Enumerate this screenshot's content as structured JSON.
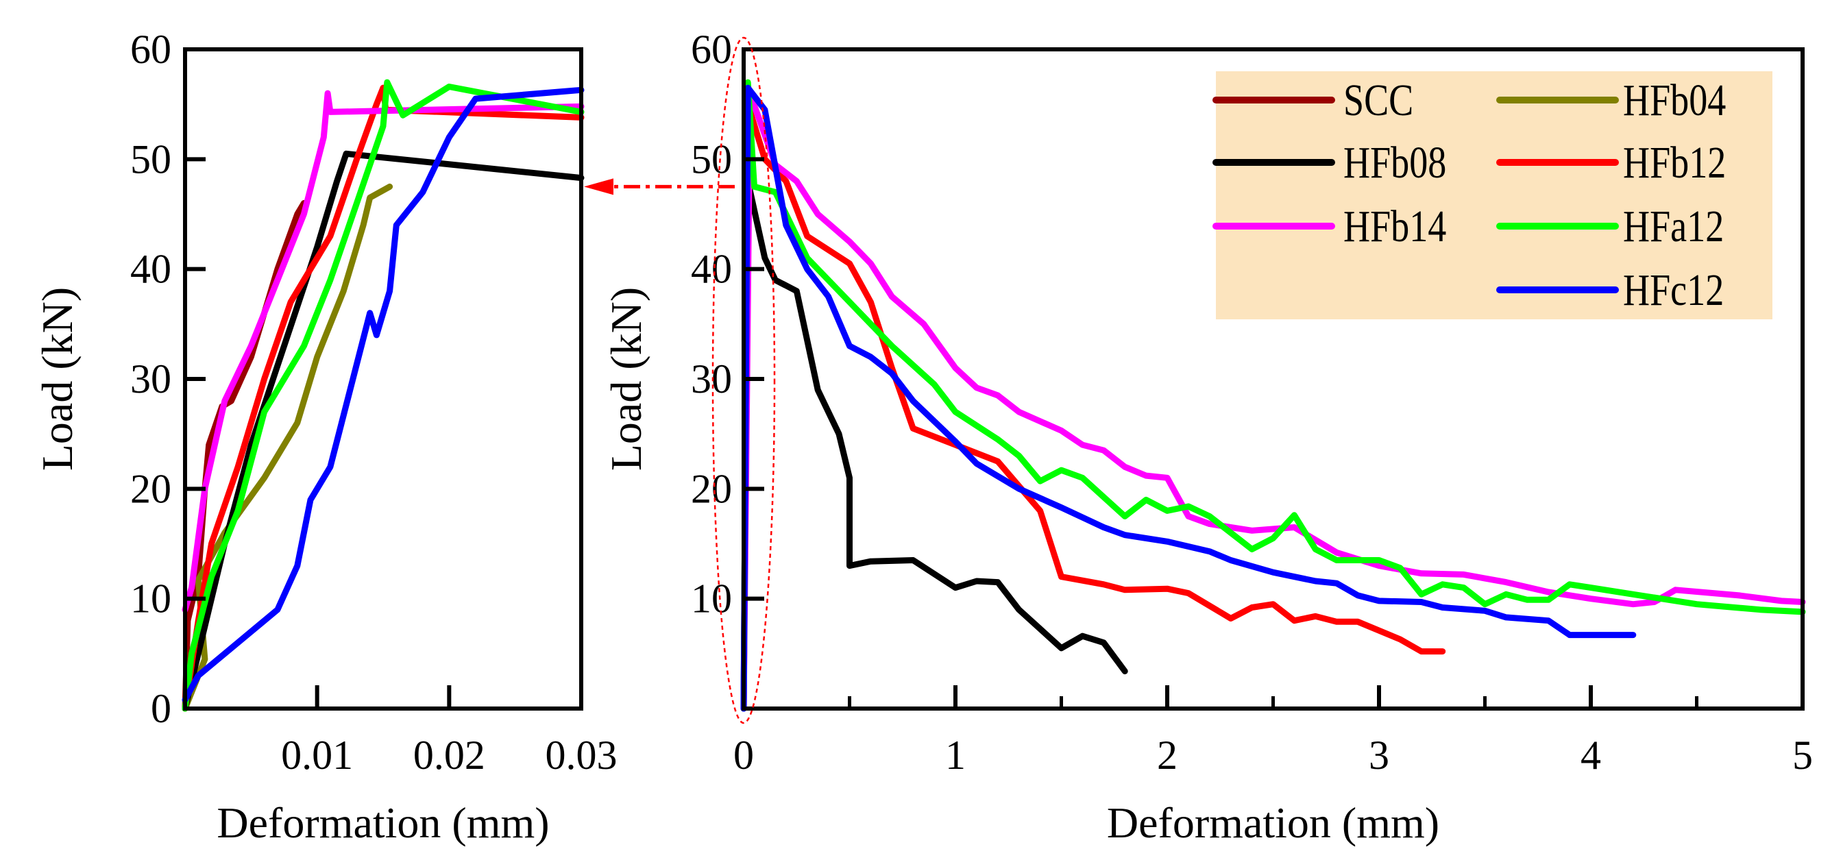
{
  "chart_data": [
    {
      "type": "line",
      "panel": "zoomed-initial",
      "xlabel": "Deformation (mm)",
      "ylabel": "Load (kN)",
      "xlim": [
        0,
        0.03
      ],
      "ylim": [
        0,
        60
      ],
      "xticks": [
        "0.01",
        "0.02",
        "0.03"
      ],
      "xtick_values": [
        0.01,
        0.02,
        0.03
      ],
      "yticks": [
        "0",
        "10",
        "20",
        "30",
        "40",
        "50",
        "60"
      ],
      "ytick_values": [
        0,
        10,
        20,
        30,
        40,
        50,
        60
      ],
      "series": [
        {
          "name": "SCC",
          "color": "#990000",
          "points": [
            [
              0,
              0
            ],
            [
              0.0002,
              8
            ],
            [
              0.001,
              12
            ],
            [
              0.0015,
              20
            ],
            [
              0.0018,
              24
            ],
            [
              0.0028,
              27.5
            ],
            [
              0.0035,
              28
            ],
            [
              0.005,
              32
            ],
            [
              0.007,
              40
            ],
            [
              0.0085,
              45
            ],
            [
              0.009,
              46
            ]
          ]
        },
        {
          "name": "HFb04",
          "color": "#808000",
          "points": [
            [
              0,
              0
            ],
            [
              0.0015,
              4.5
            ],
            [
              0.001,
              11.7
            ],
            [
              0.003,
              16
            ],
            [
              0.006,
              21
            ],
            [
              0.0085,
              26
            ],
            [
              0.01,
              32
            ],
            [
              0.012,
              38
            ],
            [
              0.0135,
              44
            ],
            [
              0.014,
              46.5
            ],
            [
              0.0155,
              47.5
            ]
          ]
        },
        {
          "name": "HFb08",
          "color": "#000000",
          "points": [
            [
              0,
              0
            ],
            [
              0.001,
              5
            ],
            [
              0.003,
              15
            ],
            [
              0.005,
              24
            ],
            [
              0.0075,
              33
            ],
            [
              0.01,
              42
            ],
            [
              0.0115,
              48
            ],
            [
              0.0122,
              50.5
            ],
            [
              0.03,
              48.3
            ]
          ]
        },
        {
          "name": "HFb12",
          "color": "#FF0000",
          "points": [
            [
              0,
              0
            ],
            [
              0.001,
              8
            ],
            [
              0.002,
              15
            ],
            [
              0.004,
              22
            ],
            [
              0.006,
              30
            ],
            [
              0.008,
              37
            ],
            [
              0.011,
              43
            ],
            [
              0.013,
              50
            ],
            [
              0.0145,
              55
            ],
            [
              0.015,
              56.5
            ],
            [
              0.0152,
              54.5
            ],
            [
              0.03,
              53.8
            ]
          ]
        },
        {
          "name": "HFb14",
          "color": "#FF00FF",
          "points": [
            [
              0,
              9
            ],
            [
              0.0005,
              11
            ],
            [
              0.0015,
              20
            ],
            [
              0.003,
              28
            ],
            [
              0.005,
              33
            ],
            [
              0.007,
              39
            ],
            [
              0.009,
              45
            ],
            [
              0.0105,
              52
            ],
            [
              0.0108,
              56
            ],
            [
              0.011,
              54.3
            ],
            [
              0.03,
              54.8
            ]
          ]
        },
        {
          "name": "HFa12",
          "color": "#00FF00",
          "points": [
            [
              0,
              0
            ],
            [
              0.0005,
              5
            ],
            [
              0.002,
              12
            ],
            [
              0.004,
              18
            ],
            [
              0.006,
              27
            ],
            [
              0.009,
              33
            ],
            [
              0.011,
              39
            ],
            [
              0.013,
              46
            ],
            [
              0.015,
              53
            ],
            [
              0.0153,
              57
            ],
            [
              0.0165,
              54
            ],
            [
              0.02,
              56.6
            ],
            [
              0.03,
              54.3
            ]
          ]
        },
        {
          "name": "HFc12",
          "color": "#0000FF",
          "points": [
            [
              0,
              0.8
            ],
            [
              0.001,
              3
            ],
            [
              0.004,
              6
            ],
            [
              0.007,
              9
            ],
            [
              0.0085,
              13
            ],
            [
              0.0095,
              19
            ],
            [
              0.011,
              22
            ],
            [
              0.0125,
              29
            ],
            [
              0.014,
              36
            ],
            [
              0.0145,
              34
            ],
            [
              0.0155,
              38
            ],
            [
              0.016,
              44
            ],
            [
              0.018,
              47
            ],
            [
              0.02,
              52
            ],
            [
              0.022,
              55.5
            ],
            [
              0.03,
              56.3
            ]
          ]
        }
      ]
    },
    {
      "type": "line",
      "panel": "full",
      "xlabel": "Deformation (mm)",
      "ylabel": "Load (kN)",
      "xlim": [
        0,
        5
      ],
      "ylim": [
        0,
        60
      ],
      "xticks": [
        "0",
        "1",
        "2",
        "3",
        "4",
        "5"
      ],
      "xtick_values": [
        0,
        1,
        2,
        3,
        4,
        5
      ],
      "yticks": [
        "10",
        "20",
        "30",
        "40",
        "50",
        "60"
      ],
      "ytick_values": [
        10,
        20,
        30,
        40,
        50,
        60
      ],
      "legend": {
        "placement": "top-right",
        "background": "#FCE4BE"
      },
      "series": [
        {
          "name": "SCC",
          "color": "#990000",
          "points": []
        },
        {
          "name": "HFb04",
          "color": "#808000",
          "points": []
        },
        {
          "name": "HFb08",
          "color": "#000000",
          "points": [
            [
              0,
              0
            ],
            [
              0.02,
              48
            ],
            [
              0.1,
              41
            ],
            [
              0.15,
              39
            ],
            [
              0.25,
              38
            ],
            [
              0.35,
              29
            ],
            [
              0.45,
              25
            ],
            [
              0.5,
              21
            ],
            [
              0.5,
              13
            ],
            [
              0.6,
              13.4
            ],
            [
              0.8,
              13.5
            ],
            [
              1,
              11
            ],
            [
              1.1,
              11.6
            ],
            [
              1.2,
              11.5
            ],
            [
              1.3,
              9
            ],
            [
              1.5,
              5.5
            ],
            [
              1.6,
              6.6
            ],
            [
              1.7,
              6
            ],
            [
              1.8,
              3.4
            ]
          ]
        },
        {
          "name": "HFb12",
          "color": "#FF0000",
          "points": [
            [
              0,
              0
            ],
            [
              0.02,
              55
            ],
            [
              0.1,
              50
            ],
            [
              0.2,
              48
            ],
            [
              0.3,
              43
            ],
            [
              0.5,
              40.5
            ],
            [
              0.6,
              37
            ],
            [
              0.7,
              31
            ],
            [
              0.8,
              25.5
            ],
            [
              1,
              24
            ],
            [
              1.2,
              22.5
            ],
            [
              1.4,
              18
            ],
            [
              1.5,
              12
            ],
            [
              1.7,
              11.3
            ],
            [
              1.8,
              10.8
            ],
            [
              2,
              10.9
            ],
            [
              2.1,
              10.5
            ],
            [
              2.3,
              8.2
            ],
            [
              2.4,
              9.2
            ],
            [
              2.5,
              9.5
            ],
            [
              2.6,
              8
            ],
            [
              2.7,
              8.4
            ],
            [
              2.8,
              7.9
            ],
            [
              2.9,
              7.9
            ],
            [
              3.1,
              6.3
            ],
            [
              3.2,
              5.2
            ],
            [
              3.3,
              5.2
            ]
          ]
        },
        {
          "name": "HFb14",
          "color": "#FF00FF",
          "points": [
            [
              0,
              0
            ],
            [
              0.03,
              56
            ],
            [
              0.15,
              49.5
            ],
            [
              0.25,
              48
            ],
            [
              0.35,
              45
            ],
            [
              0.5,
              42.5
            ],
            [
              0.6,
              40.5
            ],
            [
              0.7,
              37.5
            ],
            [
              0.85,
              35
            ],
            [
              1,
              31
            ],
            [
              1.1,
              29.2
            ],
            [
              1.2,
              28.5
            ],
            [
              1.3,
              27
            ],
            [
              1.5,
              25.3
            ],
            [
              1.6,
              24
            ],
            [
              1.7,
              23.5
            ],
            [
              1.8,
              22
            ],
            [
              1.9,
              21.2
            ],
            [
              2,
              21
            ],
            [
              2.1,
              17.5
            ],
            [
              2.2,
              16.8
            ],
            [
              2.4,
              16.2
            ],
            [
              2.6,
              16.5
            ],
            [
              2.8,
              14.2
            ],
            [
              3,
              13
            ],
            [
              3.2,
              12.3
            ],
            [
              3.4,
              12.2
            ],
            [
              3.6,
              11.5
            ],
            [
              3.8,
              10.6
            ],
            [
              4,
              10
            ],
            [
              4.2,
              9.5
            ],
            [
              4.3,
              9.7
            ],
            [
              4.4,
              10.8
            ],
            [
              4.7,
              10.3
            ],
            [
              4.9,
              9.8
            ],
            [
              5,
              9.7
            ]
          ]
        },
        {
          "name": "HFa12",
          "color": "#00FF00",
          "points": [
            [
              0,
              0
            ],
            [
              0.02,
              57
            ],
            [
              0.05,
              47.5
            ],
            [
              0.15,
              47
            ],
            [
              0.3,
              41
            ],
            [
              0.5,
              37
            ],
            [
              0.7,
              33
            ],
            [
              0.9,
              29.5
            ],
            [
              1,
              27
            ],
            [
              1.2,
              24.5
            ],
            [
              1.3,
              23
            ],
            [
              1.4,
              20.7
            ],
            [
              1.5,
              21.7
            ],
            [
              1.6,
              21
            ],
            [
              1.8,
              17.5
            ],
            [
              1.9,
              19
            ],
            [
              2,
              18
            ],
            [
              2.1,
              18.4
            ],
            [
              2.2,
              17.5
            ],
            [
              2.4,
              14.5
            ],
            [
              2.5,
              15.5
            ],
            [
              2.6,
              17.6
            ],
            [
              2.7,
              14.5
            ],
            [
              2.8,
              13.5
            ],
            [
              3,
              13.5
            ],
            [
              3.1,
              12.8
            ],
            [
              3.2,
              10.4
            ],
            [
              3.3,
              11.3
            ],
            [
              3.4,
              11
            ],
            [
              3.5,
              9.5
            ],
            [
              3.6,
              10.4
            ],
            [
              3.7,
              9.9
            ],
            [
              3.8,
              9.9
            ],
            [
              3.9,
              11.3
            ],
            [
              4,
              11
            ],
            [
              4.2,
              10.4
            ],
            [
              4.5,
              9.5
            ],
            [
              4.8,
              9
            ],
            [
              5,
              8.8
            ]
          ]
        },
        {
          "name": "HFc12",
          "color": "#0000FF",
          "points": [
            [
              0,
              0
            ],
            [
              0.02,
              56.5
            ],
            [
              0.1,
              54.5
            ],
            [
              0.2,
              44
            ],
            [
              0.3,
              40
            ],
            [
              0.4,
              37.5
            ],
            [
              0.5,
              33
            ],
            [
              0.6,
              32
            ],
            [
              0.7,
              30.5
            ],
            [
              0.8,
              28
            ],
            [
              1,
              24.3
            ],
            [
              1.1,
              22.3
            ],
            [
              1.3,
              20
            ],
            [
              1.5,
              18.3
            ],
            [
              1.7,
              16.5
            ],
            [
              1.8,
              15.8
            ],
            [
              2,
              15.2
            ],
            [
              2.2,
              14.3
            ],
            [
              2.3,
              13.5
            ],
            [
              2.5,
              12.4
            ],
            [
              2.7,
              11.6
            ],
            [
              2.8,
              11.4
            ],
            [
              2.9,
              10.3
            ],
            [
              3,
              9.8
            ],
            [
              3.2,
              9.7
            ],
            [
              3.3,
              9.2
            ],
            [
              3.5,
              8.9
            ],
            [
              3.6,
              8.3
            ],
            [
              3.8,
              8
            ],
            [
              3.9,
              6.7
            ],
            [
              4.2,
              6.7
            ]
          ]
        }
      ],
      "annotation": {
        "type": "dashed-ellipse-and-arrow",
        "color": "#FF0000",
        "arrow_y_value": 47.5
      }
    }
  ]
}
